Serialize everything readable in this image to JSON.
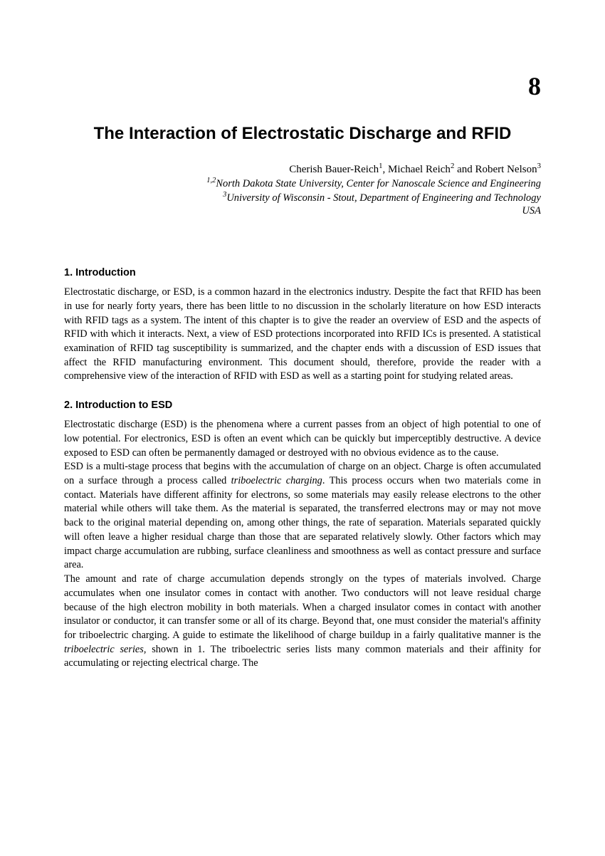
{
  "chapter_number": "8",
  "title": "The Interaction of Electrostatic Discharge and RFID",
  "authors": {
    "a1_name": "Cherish Bauer-Reich",
    "a1_sup": "1",
    "a2_name": "Michael Reich",
    "a2_sup": "2",
    "a3_name": "Robert Nelson",
    "a3_sup": "3",
    "sep_comma": ", ",
    "sep_and": " and "
  },
  "affil1_sup": "1,2",
  "affil1_text": "North Dakota State University, Center for Nanoscale Science and Engineering",
  "affil2_sup": "3",
  "affil2_text": "University of Wisconsin - Stout, Department of Engineering and Technology",
  "country": "USA",
  "section1_heading": "1. Introduction",
  "section1_body": "Electrostatic discharge, or ESD, is a common hazard in the electronics industry. Despite the fact that RFID has been in use for nearly forty years, there has been little to no discussion in the scholarly literature on how ESD interacts with RFID tags as a system. The intent of this chapter is to give the reader an overview of ESD and the aspects of RFID with which it interacts. Next, a view of ESD protections incorporated into RFID ICs is presented. A statistical examination of RFID tag susceptibility is summarized, and the chapter ends with a discussion of ESD issues that affect the RFID manufacturing environment. This document should, therefore, provide the reader with a comprehensive view of the interaction of RFID with ESD as well as a starting point for studying related areas.",
  "section2_heading": "2. Introduction to ESD",
  "section2_p1": "Electrostatic discharge (ESD) is the phenomena where a current passes from an object of high potential to one of low potential. For electronics, ESD is often an event which can be quickly but imperceptibly destructive. A device exposed to ESD can often be permanently damaged or destroyed with no obvious evidence as to the cause.",
  "section2_p2a": "ESD is a multi-stage process that begins with the accumulation of charge on an object. Charge is often accumulated on a surface through a process called ",
  "section2_p2_ital": "triboelectric charging",
  "section2_p2b": ". This process occurs when two materials come in contact. Materials have different affinity for electrons, so some materials may easily release electrons to the other material while others will take them. As the material is separated, the transferred electrons may or may not move back to the original material depending on, among other things, the rate of separation. Materials separated quickly will often leave a higher residual charge than those that are separated relatively slowly. Other factors which may impact charge accumulation are rubbing, surface cleanliness and smoothness as well as contact pressure and surface area.",
  "section2_p3a": "The amount and rate of charge accumulation depends strongly on the types of materials involved. Charge accumulates when one insulator comes in contact with another. Two conductors will not leave residual charge because of the high electron mobility in both materials. When a charged insulator comes in contact with another insulator or conductor, it can transfer some or all of its charge. Beyond that, one must consider the material's affinity for triboelectric charging. A guide to estimate the likelihood of charge buildup in a fairly qualitative manner is the ",
  "section2_p3_ital": "triboelectric series",
  "section2_p3b": ", shown in 1. The triboelectric series lists many common materials and their affinity for accumulating or rejecting electrical charge. The"
}
